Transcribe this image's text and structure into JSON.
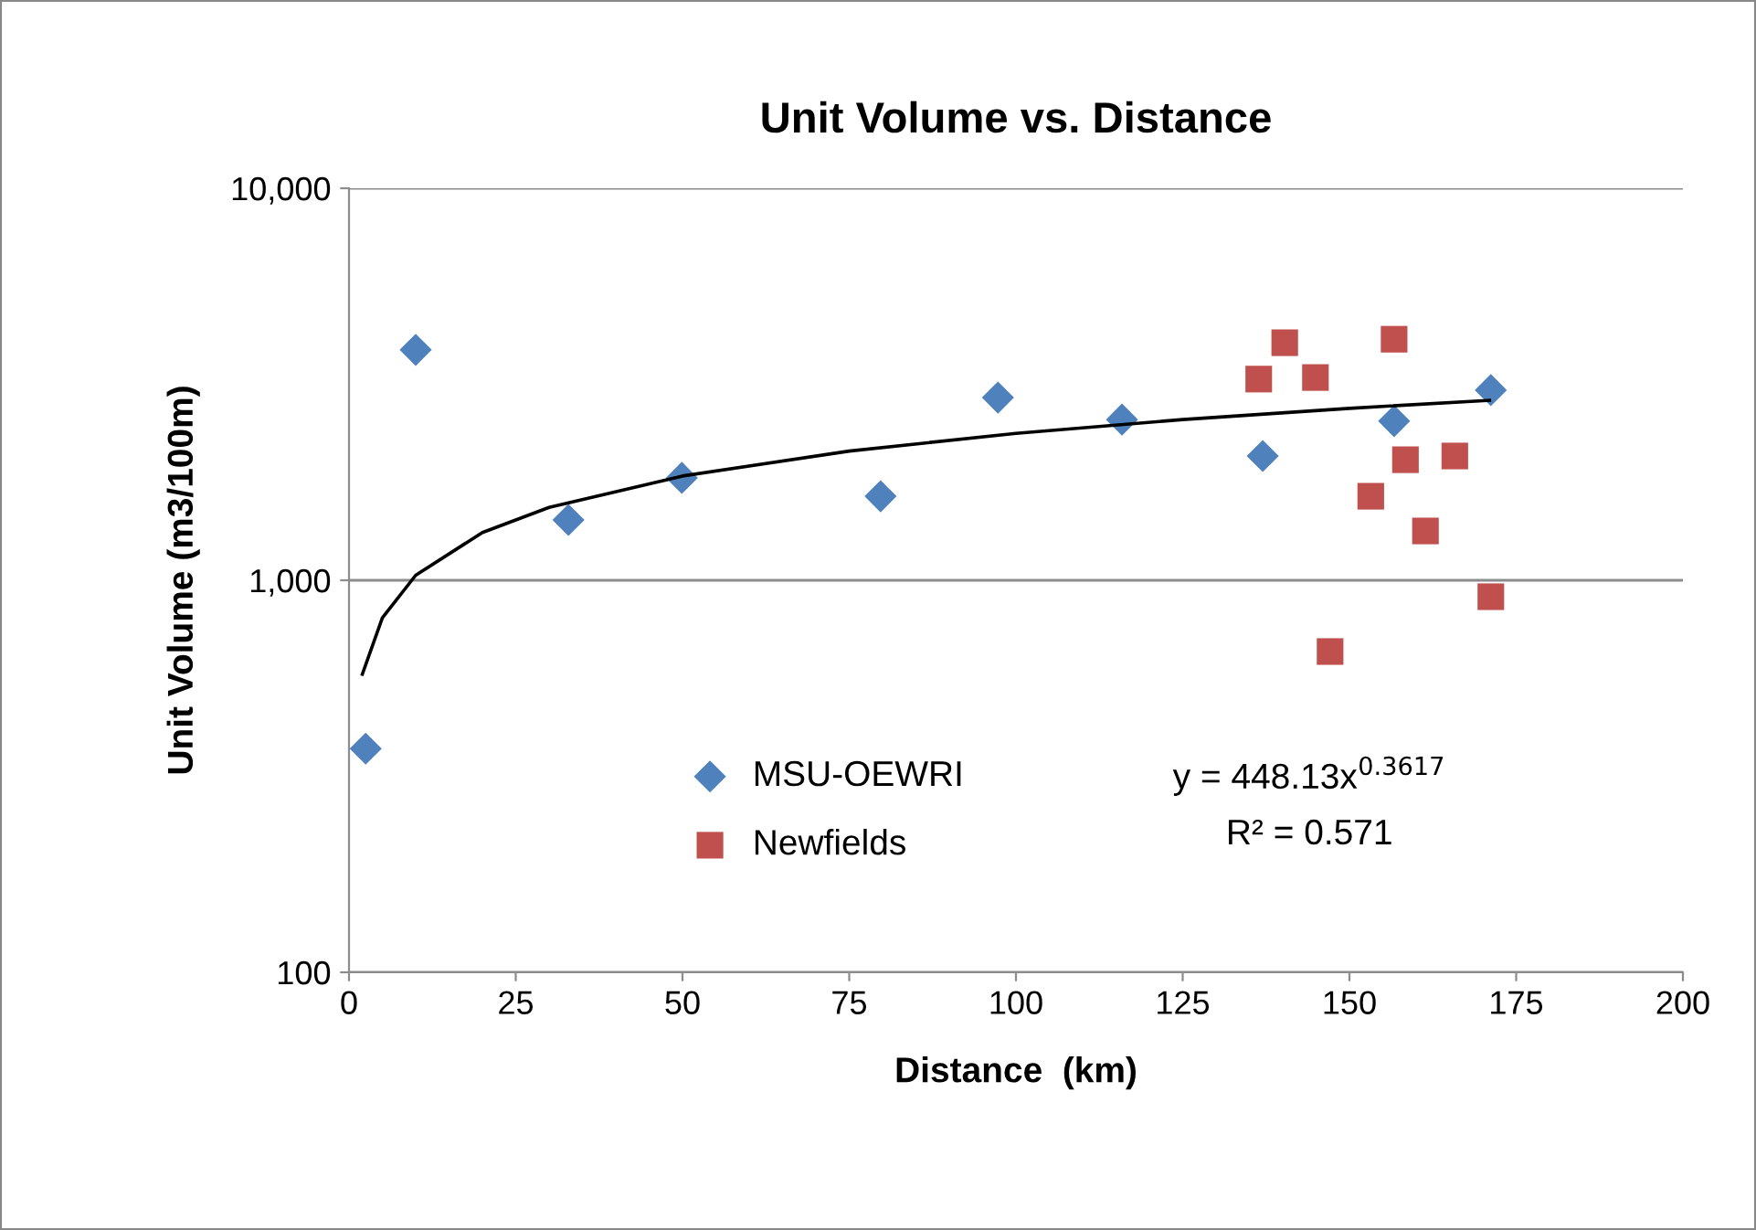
{
  "chart_data": {
    "type": "scatter",
    "title": "Unit Volume vs. Distance",
    "xlabel": "Distance  (km)",
    "ylabel": "Unit Volume (m3/100m)",
    "log": "y",
    "grid": "y",
    "legend": "lower left",
    "xlim": [
      0,
      200
    ],
    "xticks": [
      0,
      25,
      50,
      75,
      100,
      125,
      150,
      175,
      200
    ],
    "ylim": [
      100,
      10000
    ],
    "yticks": [
      {
        "value": 100,
        "label": "100"
      },
      {
        "value": 1000,
        "label": "1,000"
      },
      {
        "value": 10000,
        "label": "10,000"
      }
    ],
    "series": [
      {
        "name": "MSU-OEWRI",
        "color": "#4f81bd",
        "marker": "diamond",
        "x": [
          2.5,
          10,
          32.9,
          49.9,
          79.7,
          97.3,
          115.9,
          137,
          156.7,
          171.2
        ],
        "values": [
          372,
          3870,
          1425,
          1825,
          1638,
          2924,
          2570,
          2075,
          2547,
          3055
        ]
      },
      {
        "name": "Newfields",
        "color": "#c0504d",
        "marker": "square",
        "x": [
          136.4,
          140.3,
          144.9,
          147.1,
          153.2,
          156.7,
          158.4,
          161.4,
          165.8,
          171.2
        ],
        "values": [
          3260,
          4036,
          3290,
          658,
          1638,
          4120,
          2030,
          1336,
          2075,
          908
        ]
      },
      {
        "type": "line",
        "color": "#000000",
        "marker": "none",
        "line_style": "solid",
        "x": [
          2,
          5,
          10,
          20,
          30,
          50,
          75,
          100,
          125,
          150,
          171
        ],
        "values": [
          576,
          802,
          1030,
          1324,
          1534,
          1845,
          2136,
          2370,
          2570,
          2745,
          2878
        ]
      }
    ],
    "annotations": [
      "y = 448.13x$^{0.3617}$",
      "R² = 0.571"
    ]
  }
}
